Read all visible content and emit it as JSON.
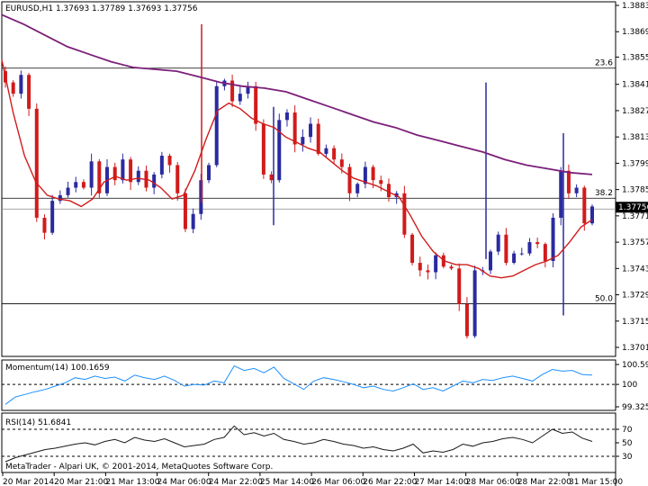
{
  "chart_data": [
    {
      "type": "candlestick",
      "header": "EURUSD,H1  1.37693 1.37789 1.37693 1.37756",
      "y_ticks": [
        "1.38830",
        "1.38690",
        "1.38555",
        "1.38410",
        "1.38270",
        "1.38130",
        "1.37990",
        "1.37850",
        "1.37710",
        "1.37570",
        "1.37430",
        "1.37290",
        "1.37150",
        "1.37010"
      ],
      "ylim": [
        1.3701,
        1.3883
      ],
      "current_price": "1.37756",
      "levels": [
        {
          "label": "23.6",
          "price": 1.38496
        },
        {
          "label": "38.2",
          "price": 1.37804
        },
        {
          "label": "50.0",
          "price": 1.37242
        }
      ],
      "x_ticks": [
        "20 Mar 2014",
        "20 Mar 21:00",
        "21 Mar 13:00",
        "24 Mar 06:00",
        "24 Mar 22:00",
        "25 Mar 14:00",
        "26 Mar 06:00",
        "26 Mar 22:00",
        "27 Mar 14:00",
        "28 Mar 06:00",
        "28 Mar 22:00",
        "31 Mar 15:00"
      ],
      "close_path": [
        1.3842,
        1.3836,
        1.3846,
        1.3828,
        1.377,
        1.3762,
        1.3779,
        1.3782,
        1.3786,
        1.3789,
        1.3786,
        1.38,
        1.3783,
        1.3797,
        1.379,
        1.3801,
        1.3789,
        1.3795,
        1.3786,
        1.3793,
        1.3803,
        1.3798,
        1.3783,
        1.3764,
        1.3772,
        1.379,
        1.3798,
        1.384,
        1.3843,
        1.3832,
        1.3836,
        1.384,
        1.382,
        1.3793,
        1.379,
        1.3822,
        1.3826,
        1.3809,
        1.3813,
        1.382,
        1.3804,
        1.3807,
        1.3801,
        1.3797,
        1.3783,
        1.3788,
        1.3797,
        1.379,
        1.3788,
        1.3781,
        1.3783,
        1.3761,
        1.3746,
        1.3742,
        1.3741,
        1.375,
        1.3744,
        1.3743,
        1.3724,
        1.3707,
        1.3742,
        1.3742,
        1.3752,
        1.3761,
        1.3746,
        1.3751,
        1.3751,
        1.3757,
        1.3756,
        1.3747,
        1.377,
        1.3795,
        1.3783,
        1.3786,
        1.3767,
        1.3776
      ],
      "ma_fast": [
        1.3854,
        1.3826,
        1.3803,
        1.3789,
        1.3782,
        1.378,
        1.3779,
        1.3776,
        1.378,
        1.3789,
        1.3792,
        1.379,
        1.3791,
        1.379,
        1.3786,
        1.378,
        1.3782,
        1.3795,
        1.3812,
        1.3827,
        1.3831,
        1.3828,
        1.3823,
        1.382,
        1.3818,
        1.3813,
        1.381,
        1.3807,
        1.3805,
        1.38,
        1.3795,
        1.3791,
        1.3789,
        1.3787,
        1.3784,
        1.3781,
        1.3771,
        1.376,
        1.3752,
        1.3747,
        1.3745,
        1.3745,
        1.3743,
        1.3739,
        1.3738,
        1.3739,
        1.3742,
        1.3745,
        1.3747,
        1.375,
        1.3757,
        1.3765,
        1.3769
      ],
      "ma_slow": [
        1.3878,
        1.3873,
        1.3867,
        1.3861,
        1.3857,
        1.3853,
        1.385,
        1.3849,
        1.3848,
        1.3845,
        1.3842,
        1.384,
        1.3839,
        1.3837,
        1.3833,
        1.3829,
        1.3825,
        1.3821,
        1.3818,
        1.3814,
        1.3811,
        1.3808,
        1.3805,
        1.3801,
        1.3798,
        1.3796,
        1.3794,
        1.3793
      ],
      "spikes": [
        {
          "hi": 1.3873,
          "lo": 1.3778
        },
        {
          "hi": 1.3829,
          "lo": 1.3766
        },
        {
          "hi": 1.3842,
          "lo": 1.3748
        },
        {
          "hi": 1.3815,
          "lo": 1.3718
        }
      ]
    },
    {
      "type": "line",
      "title": "Momentum(14) 100.1659",
      "y_ticks": [
        "100.5999",
        "100",
        "99.3255"
      ],
      "ylim": [
        99.3255,
        100.5999
      ],
      "ref": 100,
      "values": [
        99.4,
        99.62,
        99.7,
        99.78,
        99.85,
        99.95,
        100.05,
        100.2,
        100.15,
        100.25,
        100.18,
        100.22,
        100.1,
        100.28,
        100.2,
        100.15,
        100.25,
        100.12,
        99.95,
        100.0,
        99.98,
        100.1,
        100.05,
        100.56,
        100.42,
        100.48,
        100.35,
        100.52,
        100.18,
        100.02,
        99.85,
        100.1,
        100.2,
        100.15,
        100.08,
        100.0,
        99.9,
        99.95,
        99.85,
        99.8,
        99.9,
        100.02,
        99.85,
        99.9,
        99.8,
        99.95,
        100.1,
        100.05,
        100.15,
        100.12,
        100.2,
        100.25,
        100.18,
        100.1,
        100.3,
        100.45,
        100.4,
        100.42,
        100.3,
        100.28
      ]
    },
    {
      "type": "line",
      "title": "RSI(14) 51.6841",
      "y_ticks": [
        "70",
        "50",
        "30"
      ],
      "ylim": [
        10,
        90
      ],
      "ref_levels": [
        70,
        30
      ],
      "values": [
        22,
        28,
        32,
        36,
        40,
        42,
        45,
        48,
        50,
        47,
        52,
        55,
        50,
        58,
        54,
        52,
        56,
        50,
        44,
        46,
        48,
        55,
        58,
        75,
        62,
        65,
        60,
        64,
        55,
        52,
        48,
        50,
        55,
        52,
        48,
        46,
        42,
        44,
        40,
        38,
        42,
        48,
        35,
        38,
        36,
        40,
        48,
        45,
        50,
        52,
        56,
        58,
        55,
        50,
        60,
        70,
        64,
        66,
        57,
        52
      ]
    }
  ],
  "footer": "MetaTrader - Alpari UK, © 2001-2014, MetaQuotes Software Corp."
}
